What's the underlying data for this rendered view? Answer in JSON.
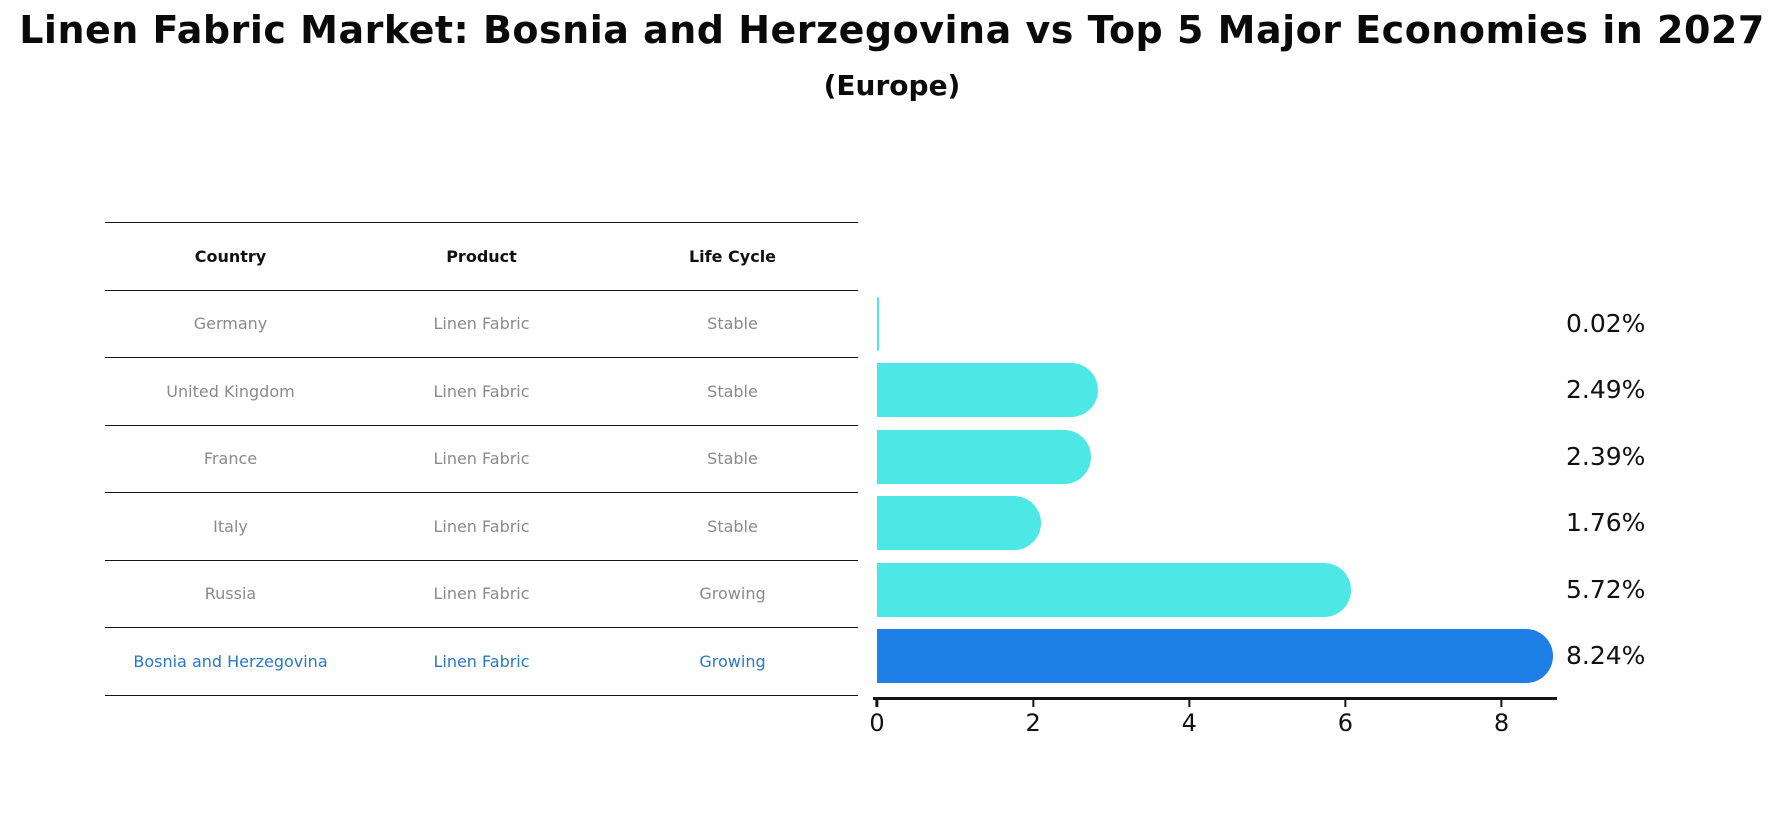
{
  "title": "Linen Fabric Market: Bosnia and Herzegovina vs Top 5 Major Economies in 2027",
  "subtitle": "(Europe)",
  "table": {
    "headers": [
      "Country",
      "Product",
      "Life Cycle"
    ],
    "rows": [
      {
        "country": "Germany",
        "product": "Linen Fabric",
        "life_cycle": "Stable"
      },
      {
        "country": "United Kingdom",
        "product": "Linen Fabric",
        "life_cycle": "Stable"
      },
      {
        "country": "France",
        "product": "Linen Fabric",
        "life_cycle": "Stable"
      },
      {
        "country": "Italy",
        "product": "Linen Fabric",
        "life_cycle": "Stable"
      },
      {
        "country": "Russia",
        "product": "Linen Fabric",
        "life_cycle": "Growing"
      },
      {
        "country": "Bosnia and Herzegovina",
        "product": "Linen Fabric",
        "life_cycle": "Growing"
      }
    ],
    "highlight_row_index": 5
  },
  "chart_data": {
    "type": "bar",
    "orientation": "horizontal",
    "title": "Linen Fabric Market: Bosnia and Herzegovina vs Top 5 Major Economies in 2027 (Europe)",
    "categories": [
      "Germany",
      "United Kingdom",
      "France",
      "Italy",
      "Russia",
      "Bosnia and Herzegovina"
    ],
    "values": [
      0.02,
      2.49,
      2.39,
      1.76,
      5.72,
      8.24
    ],
    "value_labels": [
      "0.02%",
      "2.49%",
      "2.39%",
      "1.76%",
      "5.72%",
      "8.24%"
    ],
    "xlim": [
      0,
      8.66
    ],
    "xticks": [
      0,
      2,
      4,
      6,
      8
    ],
    "xtick_labels": [
      "0",
      "2",
      "4",
      "6",
      "8"
    ],
    "grid": false,
    "legend": false,
    "bar_color": "#4de8e6",
    "highlight_bar_color": "#1e7fe6",
    "highlight_index": 5
  },
  "colors": {
    "bar": "#4de8e6",
    "highlight_bar": "#1e7fe6",
    "highlight_text": "#2878c8",
    "table_text": "#8a8a8a",
    "heading_text": "#111111"
  }
}
